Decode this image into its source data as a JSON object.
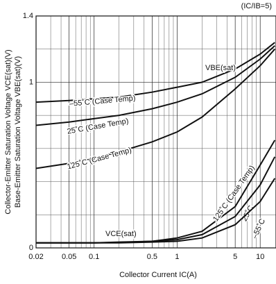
{
  "chart_data": {
    "type": "line",
    "condition": "(IC/IB=5)",
    "x_label": "Collector Current IC(A)",
    "y_label": [
      "Collector-Emitter Saturation Voltage VCE(sat)(V)",
      "Base-Emitter Saturation Voltage VBE(sat)(V)"
    ],
    "log_x": true,
    "xlim": [
      0.02,
      15.5
    ],
    "xticks": [
      0.02,
      0.05,
      0.1,
      0.5,
      1,
      5,
      10
    ],
    "xminor": [
      0.03,
      0.04,
      0.06,
      0.07,
      0.08,
      0.09,
      0.2,
      0.3,
      0.4,
      0.6,
      0.7,
      0.8,
      0.9,
      2,
      3,
      4,
      6,
      7,
      8,
      9
    ],
    "ylim": [
      0,
      1.4
    ],
    "yticks": [
      0,
      1,
      1.4
    ],
    "yminor": [
      0.2,
      0.4,
      0.6,
      0.8,
      1.2
    ],
    "grid": true,
    "annotations": [
      "VBE(sat)",
      "VCE(sat)"
    ],
    "x": [
      0.02,
      0.05,
      0.1,
      0.2,
      0.5,
      1,
      2,
      5,
      10,
      15
    ],
    "series": [
      {
        "name": "–55˚C (Case Temp)",
        "color": "#111111",
        "values": [
          0.88,
          0.89,
          0.9,
          0.91,
          0.94,
          0.97,
          1.0,
          1.08,
          1.17,
          1.24
        ]
      },
      {
        "name": "25˚C (Case Temp)",
        "color": "#111111",
        "values": [
          0.74,
          0.76,
          0.78,
          0.8,
          0.84,
          0.88,
          0.93,
          1.03,
          1.14,
          1.22
        ]
      },
      {
        "name": "125˚C (Case Temp)",
        "color": "#111111",
        "values": [
          0.48,
          0.51,
          0.54,
          0.58,
          0.64,
          0.7,
          0.79,
          0.96,
          1.1,
          1.2
        ]
      },
      {
        "name": "125˚C (Case Temp)",
        "color": "#111111",
        "values": [
          0.03,
          0.03,
          0.03,
          0.035,
          0.04,
          0.06,
          0.1,
          0.25,
          0.5,
          0.65
        ]
      },
      {
        "name": "25˚C",
        "color": "#111111",
        "values": [
          0.03,
          0.03,
          0.03,
          0.033,
          0.04,
          0.05,
          0.08,
          0.19,
          0.38,
          0.55
        ]
      },
      {
        "name": "–55˚C",
        "color": "#111111",
        "values": [
          0.03,
          0.03,
          0.03,
          0.03,
          0.035,
          0.04,
          0.06,
          0.14,
          0.28,
          0.42
        ]
      }
    ]
  }
}
